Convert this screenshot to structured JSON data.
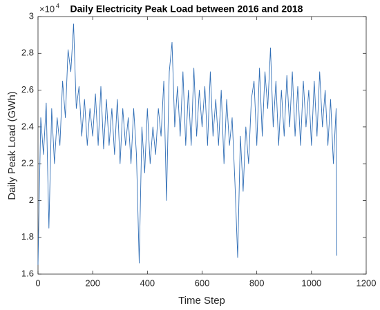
{
  "chart_data": {
    "type": "line",
    "title": "Daily Electricity Peak Load between 2016 and 2018",
    "x_label": "Time Step",
    "y_label": "Daily Peak Load (GWh)",
    "y_exponent_base": "×10",
    "y_exponent": "4",
    "color": "#2f6db5",
    "xlim": [
      0,
      1200
    ],
    "xticks": [
      0,
      200,
      400,
      600,
      800,
      1000,
      1200
    ],
    "ylim": [
      1.6,
      3
    ],
    "yticks": [
      1.6,
      1.8,
      2,
      2.2,
      2.4,
      2.6,
      2.8,
      3
    ],
    "x": [
      0,
      10,
      20,
      30,
      40,
      50,
      60,
      70,
      80,
      90,
      100,
      110,
      120,
      130,
      140,
      150,
      160,
      170,
      180,
      190,
      200,
      210,
      220,
      230,
      240,
      250,
      260,
      270,
      280,
      290,
      300,
      310,
      320,
      330,
      340,
      350,
      360,
      370,
      380,
      390,
      400,
      410,
      420,
      430,
      440,
      450,
      460,
      470,
      480,
      490,
      500,
      510,
      520,
      530,
      540,
      550,
      560,
      570,
      580,
      590,
      600,
      610,
      620,
      630,
      640,
      650,
      660,
      670,
      680,
      690,
      700,
      710,
      720,
      730,
      740,
      750,
      760,
      770,
      780,
      790,
      800,
      810,
      820,
      830,
      840,
      850,
      860,
      870,
      880,
      890,
      900,
      910,
      920,
      930,
      940,
      950,
      960,
      970,
      980,
      990,
      1000,
      1010,
      1020,
      1030,
      1040,
      1050,
      1060,
      1070,
      1080,
      1090,
      1093
    ],
    "values": [
      1.65,
      2.45,
      2.25,
      2.53,
      1.85,
      2.5,
      2.2,
      2.45,
      2.3,
      2.65,
      2.45,
      2.82,
      2.7,
      2.96,
      2.5,
      2.62,
      2.35,
      2.55,
      2.3,
      2.5,
      2.35,
      2.58,
      2.3,
      2.62,
      2.28,
      2.55,
      2.3,
      2.5,
      2.25,
      2.55,
      2.2,
      2.5,
      2.3,
      2.45,
      2.2,
      2.5,
      2.25,
      1.66,
      2.4,
      2.15,
      2.5,
      2.2,
      2.4,
      2.25,
      2.5,
      2.35,
      2.65,
      2.0,
      2.7,
      2.86,
      2.4,
      2.62,
      2.35,
      2.7,
      2.3,
      2.6,
      2.3,
      2.72,
      2.35,
      2.6,
      2.4,
      2.62,
      2.3,
      2.7,
      2.35,
      2.55,
      2.3,
      2.6,
      2.2,
      2.55,
      2.3,
      2.45,
      2.1,
      1.69,
      2.35,
      2.05,
      2.4,
      2.2,
      2.55,
      2.65,
      2.3,
      2.72,
      2.35,
      2.7,
      2.5,
      2.83,
      2.4,
      2.65,
      2.3,
      2.6,
      2.35,
      2.68,
      2.4,
      2.7,
      2.35,
      2.62,
      2.3,
      2.65,
      2.4,
      2.6,
      2.3,
      2.65,
      2.35,
      2.7,
      2.4,
      2.6,
      2.3,
      2.55,
      2.2,
      2.5,
      1.7
    ]
  }
}
